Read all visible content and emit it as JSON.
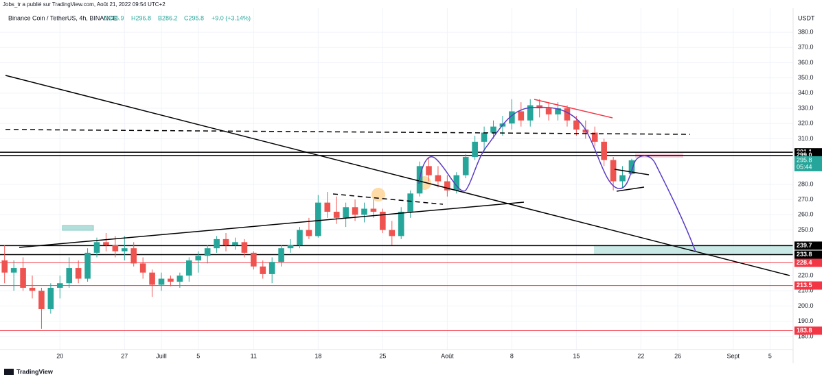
{
  "header": {
    "publisher": "Jobs_tr a publié sur TradingView.com, Août 21, 2022 09:54 UTC+2",
    "symbol": "Binance Coin / TetherUS, 4h, BINANCE",
    "open": "O286.9",
    "high": "H296.8",
    "low": "B286.2",
    "close": "C295.8",
    "change": "+9.0 (+3.14%)"
  },
  "footer": {
    "brand": "TradingView"
  },
  "chart_data": {
    "type": "candlestick",
    "y_axis_label": "USDT",
    "categories": [
      null,
      null,
      null,
      null,
      null,
      null,
      "20",
      null,
      null,
      null,
      null,
      null,
      null,
      "27",
      null,
      null,
      null,
      "Juill",
      null,
      null,
      null,
      "5",
      null,
      null,
      null,
      null,
      null,
      "11",
      null,
      null,
      null,
      null,
      null,
      null,
      "18",
      null,
      null,
      null,
      null,
      null,
      null,
      "25",
      null,
      null,
      null,
      null,
      null,
      null,
      "Août",
      null,
      null,
      null,
      null,
      null,
      null,
      "8",
      null,
      null,
      null,
      null,
      null,
      null,
      "15",
      null,
      null,
      null,
      null,
      null,
      null,
      "22",
      null,
      null,
      null,
      "26",
      null,
      null,
      null,
      null,
      null,
      "Sept",
      null,
      null,
      null,
      "5",
      null,
      null
    ],
    "open": [
      230,
      222,
      225,
      212,
      210,
      198,
      212,
      215,
      225,
      218,
      235,
      242,
      240,
      236,
      238,
      228,
      222,
      214,
      218,
      216,
      220,
      230,
      233,
      238,
      244,
      240,
      242,
      235,
      226,
      221,
      229,
      238,
      240,
      250,
      246,
      268,
      262,
      258,
      265,
      260,
      264,
      262,
      250,
      246,
      262,
      274,
      292,
      286,
      282,
      276,
      286,
      298,
      308,
      314,
      318,
      320,
      328,
      322,
      332,
      330,
      326,
      330,
      322,
      316,
      314,
      308,
      296,
      282,
      286.9,
      null,
      null,
      null,
      null,
      null,
      null,
      null,
      null,
      null,
      null,
      null,
      null,
      null,
      null,
      null,
      null,
      null
    ],
    "high": [
      240,
      230,
      232,
      220,
      212,
      215,
      220,
      232,
      230,
      238,
      245,
      248,
      246,
      246,
      242,
      232,
      224,
      222,
      220,
      222,
      232,
      236,
      240,
      246,
      248,
      245,
      244,
      236,
      230,
      232,
      240,
      244,
      252,
      258,
      273,
      275,
      272,
      268,
      270,
      268,
      270,
      264,
      256,
      265,
      276,
      295,
      298,
      292,
      286,
      288,
      300,
      312,
      318,
      322,
      325,
      336,
      334,
      336,
      336,
      334,
      334,
      332,
      325,
      322,
      318,
      310,
      298,
      292,
      296.8,
      null,
      null,
      null,
      null,
      null,
      null,
      null,
      null,
      null,
      null,
      null,
      null,
      null,
      null,
      null,
      null,
      null
    ],
    "low": [
      215,
      210,
      210,
      205,
      185,
      195,
      205,
      212,
      215,
      216,
      232,
      236,
      232,
      230,
      226,
      218,
      206,
      210,
      213,
      212,
      216,
      222,
      228,
      235,
      236,
      237,
      232,
      224,
      218,
      215,
      226,
      235,
      238,
      244,
      245,
      258,
      254,
      252,
      256,
      255,
      258,
      248,
      240,
      244,
      258,
      272,
      282,
      278,
      272,
      274,
      284,
      296,
      302,
      310,
      312,
      316,
      318,
      318,
      324,
      322,
      322,
      318,
      312,
      310,
      305,
      292,
      276,
      278,
      286.2,
      null,
      null,
      null,
      null,
      null,
      null,
      null,
      null,
      null,
      null,
      null,
      null,
      null,
      null,
      null,
      null,
      null
    ],
    "close": [
      222,
      225,
      212,
      210,
      198,
      212,
      215,
      225,
      218,
      235,
      242,
      240,
      236,
      238,
      228,
      222,
      214,
      218,
      216,
      220,
      230,
      233,
      238,
      244,
      240,
      242,
      235,
      226,
      221,
      229,
      238,
      240,
      250,
      246,
      268,
      262,
      258,
      265,
      260,
      264,
      262,
      250,
      246,
      262,
      274,
      292,
      286,
      282,
      276,
      286,
      298,
      308,
      314,
      318,
      320,
      328,
      322,
      332,
      330,
      326,
      330,
      322,
      316,
      314,
      308,
      296,
      282,
      286,
      295.8,
      null,
      null,
      null,
      null,
      null,
      null,
      null,
      null,
      null,
      null,
      null,
      null,
      null,
      null,
      null,
      null,
      null
    ],
    "up_color": "#26a69a",
    "down_color": "#ef5350",
    "ylim": [
      171.4,
      395.8
    ],
    "yticks": [
      {
        "value": 180,
        "label": "180.0"
      },
      {
        "value": 190,
        "label": "190.0"
      },
      {
        "value": 200,
        "label": "200.0"
      },
      {
        "value": 210,
        "label": "210.0"
      },
      {
        "value": 220,
        "label": "220.0"
      },
      {
        "value": 250,
        "label": "250.0"
      },
      {
        "value": 260,
        "label": "260.0"
      },
      {
        "value": 270,
        "label": "270.0"
      },
      {
        "value": 280,
        "label": "280.0"
      },
      {
        "value": 310,
        "label": "310.0"
      },
      {
        "value": 320,
        "label": "320.0"
      },
      {
        "value": 330,
        "label": "330.0"
      },
      {
        "value": 340,
        "label": "340.0"
      },
      {
        "value": 350,
        "label": "350.0"
      },
      {
        "value": 360,
        "label": "360.0"
      },
      {
        "value": 370,
        "label": "370.0"
      },
      {
        "value": 380,
        "label": "380.0"
      }
    ],
    "grid": true,
    "levels": [
      {
        "value": 301.1,
        "label": "301.1",
        "color": "#000000"
      },
      {
        "value": 299.0,
        "label": "299.0",
        "color": "#000000"
      },
      {
        "value": 239.7,
        "label": "239.7",
        "color": "#000000"
      },
      {
        "value": 233.8,
        "label": "233.8",
        "color": "#000000"
      },
      {
        "value": 228.4,
        "label": "228.4",
        "color": "#f23645"
      },
      {
        "value": 213.5,
        "label": "213.5",
        "color": "#f23645"
      },
      {
        "value": 183.8,
        "label": "183.8",
        "color": "#f23645"
      }
    ],
    "last_price": {
      "value": 295.8,
      "countdown": "05:44",
      "color": "#26a69a"
    }
  }
}
